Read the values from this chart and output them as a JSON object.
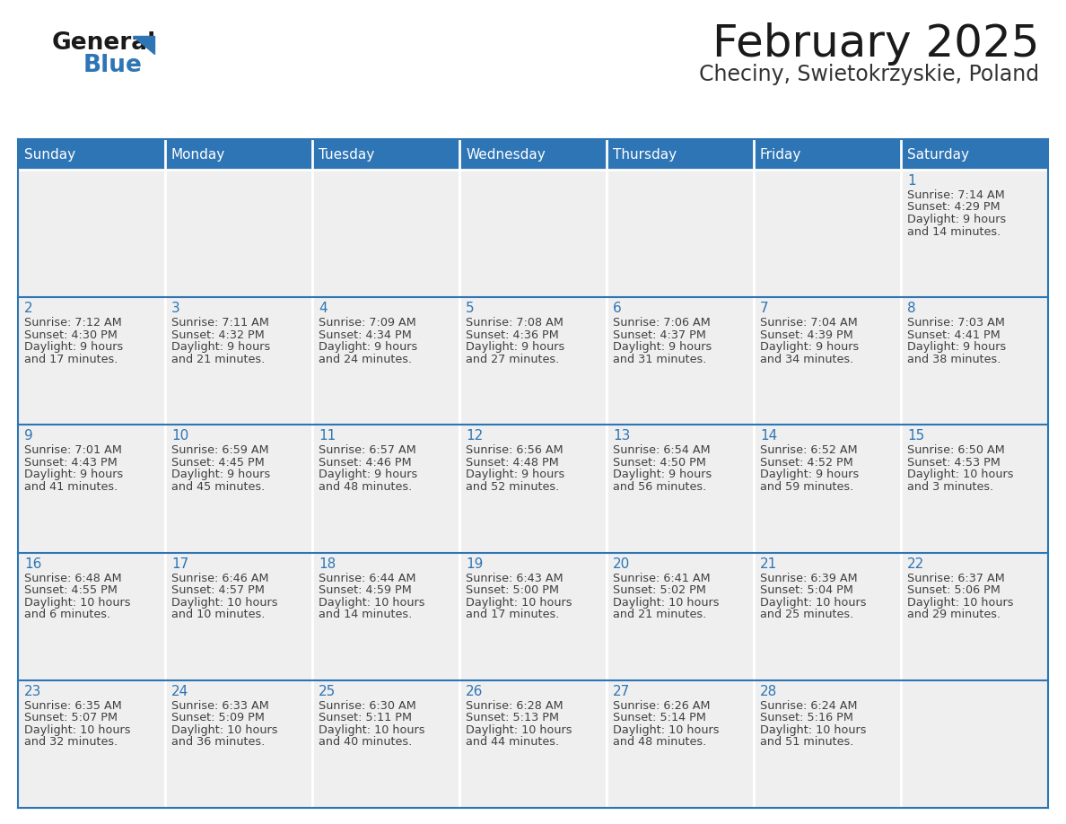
{
  "title": "February 2025",
  "subtitle": "Checiny, Swietokrzyskie, Poland",
  "days_of_week": [
    "Sunday",
    "Monday",
    "Tuesday",
    "Wednesday",
    "Thursday",
    "Friday",
    "Saturday"
  ],
  "header_bg": "#2E75B6",
  "header_text": "#FFFFFF",
  "cell_bg": "#EFEFEF",
  "separator_color": "#FFFFFF",
  "row_separator_color": "#2E75B6",
  "day_number_color": "#2E75B6",
  "info_text_color": "#404040",
  "title_color": "#1a1a1a",
  "subtitle_color": "#333333",
  "logo_general_color": "#1a1a1a",
  "logo_blue_color": "#2E75B6",
  "calendar_data": [
    [
      null,
      null,
      null,
      null,
      null,
      null,
      {
        "day": 1,
        "sunrise": "7:14 AM",
        "sunset": "4:29 PM",
        "daylight": "9 hours and 14 minutes."
      }
    ],
    [
      {
        "day": 2,
        "sunrise": "7:12 AM",
        "sunset": "4:30 PM",
        "daylight": "9 hours and 17 minutes."
      },
      {
        "day": 3,
        "sunrise": "7:11 AM",
        "sunset": "4:32 PM",
        "daylight": "9 hours and 21 minutes."
      },
      {
        "day": 4,
        "sunrise": "7:09 AM",
        "sunset": "4:34 PM",
        "daylight": "9 hours and 24 minutes."
      },
      {
        "day": 5,
        "sunrise": "7:08 AM",
        "sunset": "4:36 PM",
        "daylight": "9 hours and 27 minutes."
      },
      {
        "day": 6,
        "sunrise": "7:06 AM",
        "sunset": "4:37 PM",
        "daylight": "9 hours and 31 minutes."
      },
      {
        "day": 7,
        "sunrise": "7:04 AM",
        "sunset": "4:39 PM",
        "daylight": "9 hours and 34 minutes."
      },
      {
        "day": 8,
        "sunrise": "7:03 AM",
        "sunset": "4:41 PM",
        "daylight": "9 hours and 38 minutes."
      }
    ],
    [
      {
        "day": 9,
        "sunrise": "7:01 AM",
        "sunset": "4:43 PM",
        "daylight": "9 hours and 41 minutes."
      },
      {
        "day": 10,
        "sunrise": "6:59 AM",
        "sunset": "4:45 PM",
        "daylight": "9 hours and 45 minutes."
      },
      {
        "day": 11,
        "sunrise": "6:57 AM",
        "sunset": "4:46 PM",
        "daylight": "9 hours and 48 minutes."
      },
      {
        "day": 12,
        "sunrise": "6:56 AM",
        "sunset": "4:48 PM",
        "daylight": "9 hours and 52 minutes."
      },
      {
        "day": 13,
        "sunrise": "6:54 AM",
        "sunset": "4:50 PM",
        "daylight": "9 hours and 56 minutes."
      },
      {
        "day": 14,
        "sunrise": "6:52 AM",
        "sunset": "4:52 PM",
        "daylight": "9 hours and 59 minutes."
      },
      {
        "day": 15,
        "sunrise": "6:50 AM",
        "sunset": "4:53 PM",
        "daylight": "10 hours and 3 minutes."
      }
    ],
    [
      {
        "day": 16,
        "sunrise": "6:48 AM",
        "sunset": "4:55 PM",
        "daylight": "10 hours and 6 minutes."
      },
      {
        "day": 17,
        "sunrise": "6:46 AM",
        "sunset": "4:57 PM",
        "daylight": "10 hours and 10 minutes."
      },
      {
        "day": 18,
        "sunrise": "6:44 AM",
        "sunset": "4:59 PM",
        "daylight": "10 hours and 14 minutes."
      },
      {
        "day": 19,
        "sunrise": "6:43 AM",
        "sunset": "5:00 PM",
        "daylight": "10 hours and 17 minutes."
      },
      {
        "day": 20,
        "sunrise": "6:41 AM",
        "sunset": "5:02 PM",
        "daylight": "10 hours and 21 minutes."
      },
      {
        "day": 21,
        "sunrise": "6:39 AM",
        "sunset": "5:04 PM",
        "daylight": "10 hours and 25 minutes."
      },
      {
        "day": 22,
        "sunrise": "6:37 AM",
        "sunset": "5:06 PM",
        "daylight": "10 hours and 29 minutes."
      }
    ],
    [
      {
        "day": 23,
        "sunrise": "6:35 AM",
        "sunset": "5:07 PM",
        "daylight": "10 hours and 32 minutes."
      },
      {
        "day": 24,
        "sunrise": "6:33 AM",
        "sunset": "5:09 PM",
        "daylight": "10 hours and 36 minutes."
      },
      {
        "day": 25,
        "sunrise": "6:30 AM",
        "sunset": "5:11 PM",
        "daylight": "10 hours and 40 minutes."
      },
      {
        "day": 26,
        "sunrise": "6:28 AM",
        "sunset": "5:13 PM",
        "daylight": "10 hours and 44 minutes."
      },
      {
        "day": 27,
        "sunrise": "6:26 AM",
        "sunset": "5:14 PM",
        "daylight": "10 hours and 48 minutes."
      },
      {
        "day": 28,
        "sunrise": "6:24 AM",
        "sunset": "5:16 PM",
        "daylight": "10 hours and 51 minutes."
      },
      null
    ]
  ],
  "figsize": [
    11.88,
    9.18
  ],
  "dpi": 100
}
